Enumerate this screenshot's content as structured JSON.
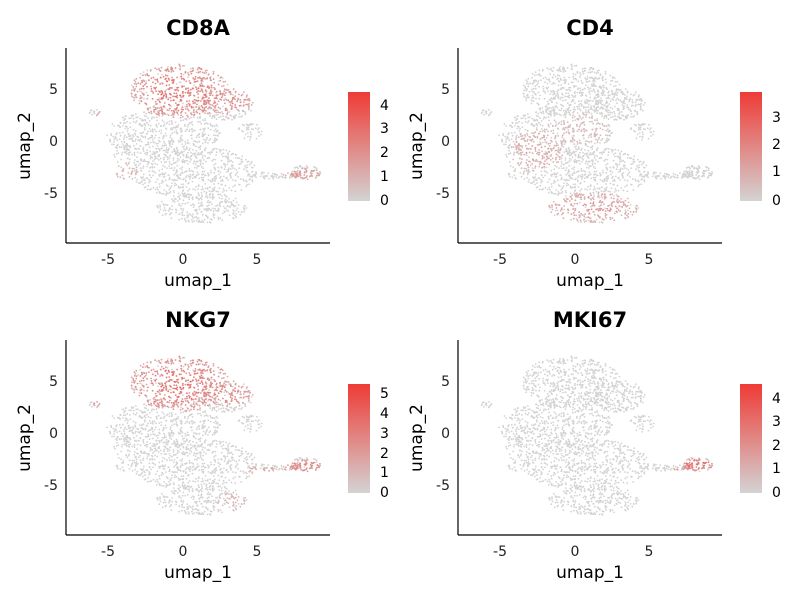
{
  "chart_data": [
    {
      "type": "scatter",
      "title": "CD8A",
      "xlabel": "umap_1",
      "ylabel": "umap_2",
      "xlim": [
        -8,
        9.5
      ],
      "ylim": [
        -9.5,
        8.5
      ],
      "xticks": [
        -5,
        0,
        5
      ],
      "yticks": [
        5,
        0,
        -5
      ],
      "grid": false,
      "legend": {
        "placement": "right",
        "min": 0,
        "max": 4.5,
        "ticks": [
          4,
          3,
          2,
          1,
          0
        ]
      },
      "high_regions": [
        {
          "cx": -0.5,
          "cy": 4.5,
          "rx": 3.3,
          "ry": 2.5,
          "level": 0.75
        },
        {
          "cx": 2.8,
          "cy": 3.6,
          "rx": 1.6,
          "ry": 1.3,
          "level": 0.6
        },
        {
          "cx": -5.5,
          "cy": 2.5,
          "rx": 0.6,
          "ry": 0.4,
          "level": 0.45
        },
        {
          "cx": 7.8,
          "cy": -3.2,
          "rx": 1.4,
          "ry": 0.6,
          "level": 0.45
        },
        {
          "cx": -4.0,
          "cy": -3.0,
          "rx": 0.8,
          "ry": 0.9,
          "level": 0.3
        }
      ]
    },
    {
      "type": "scatter",
      "title": "CD4",
      "xlabel": "umap_1",
      "ylabel": "umap_2",
      "xlim": [
        -8,
        9.5
      ],
      "ylim": [
        -9.5,
        8.5
      ],
      "xticks": [
        -5,
        0,
        5
      ],
      "yticks": [
        5,
        0,
        -5
      ],
      "grid": false,
      "legend": {
        "placement": "right",
        "min": 0,
        "max": 3.6,
        "ticks": [
          3,
          2,
          1,
          0
        ]
      },
      "high_regions": [
        {
          "cx": 1.0,
          "cy": -6.2,
          "rx": 3.2,
          "ry": 1.4,
          "level": 0.45
        },
        {
          "cx": -2.8,
          "cy": -1.0,
          "rx": 1.8,
          "ry": 2.0,
          "level": 0.35
        },
        {
          "cx": 0.0,
          "cy": 1.0,
          "rx": 2.2,
          "ry": 1.5,
          "level": 0.25
        }
      ]
    },
    {
      "type": "scatter",
      "title": "NKG7",
      "xlabel": "umap_1",
      "ylabel": "umap_2",
      "xlim": [
        -8,
        9.5
      ],
      "ylim": [
        -9.5,
        8.5
      ],
      "xticks": [
        -5,
        0,
        5
      ],
      "yticks": [
        5,
        0,
        -5
      ],
      "grid": false,
      "legend": {
        "placement": "right",
        "min": 0,
        "max": 5.5,
        "ticks": [
          5,
          4,
          3,
          2,
          1,
          0
        ]
      },
      "high_regions": [
        {
          "cx": -0.5,
          "cy": 4.5,
          "rx": 3.4,
          "ry": 2.6,
          "level": 0.75
        },
        {
          "cx": 2.8,
          "cy": 3.6,
          "rx": 1.6,
          "ry": 1.3,
          "level": 0.65
        },
        {
          "cx": -5.8,
          "cy": 2.7,
          "rx": 0.5,
          "ry": 0.35,
          "level": 0.5
        },
        {
          "cx": 7.8,
          "cy": -3.2,
          "rx": 1.4,
          "ry": 0.7,
          "level": 0.6
        },
        {
          "cx": 5.0,
          "cy": -3.5,
          "rx": 1.0,
          "ry": 0.4,
          "level": 0.4
        },
        {
          "cx": 3.0,
          "cy": -6.5,
          "rx": 1.0,
          "ry": 1.0,
          "level": 0.3
        }
      ]
    },
    {
      "type": "scatter",
      "title": "MKI67",
      "xlabel": "umap_1",
      "ylabel": "umap_2",
      "xlim": [
        -8,
        9.5
      ],
      "ylim": [
        -9.5,
        8.5
      ],
      "xticks": [
        -5,
        0,
        5
      ],
      "yticks": [
        5,
        0,
        -5
      ],
      "grid": false,
      "legend": {
        "placement": "right",
        "min": 0,
        "max": 4.6,
        "ticks": [
          4,
          3,
          2,
          1,
          0
        ]
      },
      "high_regions": [
        {
          "cx": 7.9,
          "cy": -3.0,
          "rx": 1.0,
          "ry": 0.6,
          "level": 0.85
        },
        {
          "cx": 6.8,
          "cy": -3.5,
          "rx": 0.6,
          "ry": 0.3,
          "level": 0.5
        }
      ]
    }
  ],
  "colors": {
    "low": "#d3d3d3",
    "high": "#ef3b36"
  }
}
